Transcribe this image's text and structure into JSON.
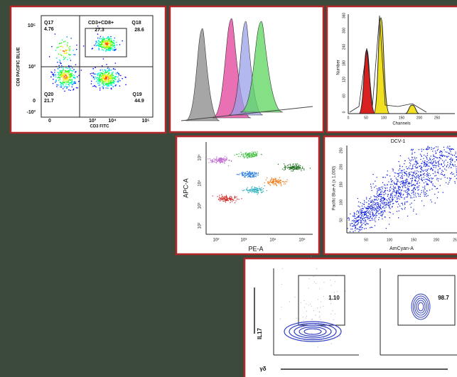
{
  "quadrant_plot": {
    "y_label": "CD8 PACIFIC BLUE",
    "x_label": "CD3 FITC",
    "gate_label": "CD3+CD8+",
    "gate_value": "27.3",
    "quadrants": [
      {
        "name": "Q17",
        "value": "4.76"
      },
      {
        "name": "Q18",
        "value": "28.6"
      },
      {
        "name": "Q20",
        "value": "21.7"
      },
      {
        "name": "Q19",
        "value": "44.9"
      }
    ],
    "yticks": [
      "10⁵",
      "10³",
      "0",
      "-10³"
    ],
    "xticks": [
      "0",
      "10³",
      "10⁴",
      "10⁵"
    ]
  },
  "cycle_histogram": {
    "y_label": "Number",
    "x_label": "Channels",
    "yticks": [
      "0",
      "60",
      "120",
      "180",
      "240",
      "300",
      "360"
    ],
    "xticks": [
      "0",
      "50",
      "100",
      "150",
      "200",
      "250"
    ]
  },
  "cluster_plot": {
    "y_label": "APC-A",
    "x_label": "PE-A",
    "yticks": [
      "10²",
      "10³",
      "10⁴",
      "10⁵"
    ],
    "xticks": [
      "10²",
      "10³",
      "10⁴",
      "10⁵"
    ]
  },
  "density_plot": {
    "title": "DCV-1",
    "y_label": "Pacific Blue-A (x 1,000)",
    "x_label": "AmCyan-A",
    "yticks": [
      "50",
      "100",
      "150",
      "200",
      "250"
    ],
    "xticks": [
      "50",
      "100",
      "150",
      "200",
      "25"
    ]
  },
  "contour_plots": {
    "y_label": "IL17",
    "x_label": "γδ",
    "gates": [
      "1.10",
      "98.7"
    ]
  }
}
